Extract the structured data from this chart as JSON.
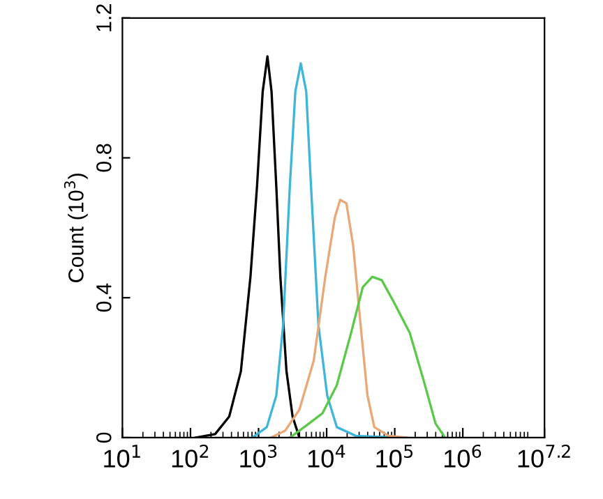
{
  "chart_data": {
    "type": "line",
    "ylabel": "Count (10$^{3}$)",
    "log": "x",
    "grid": false,
    "legend": false,
    "marker": "none",
    "line_style": "solid",
    "xlim": [
      10,
      15848932
    ],
    "ylim": [
      0,
      1.2
    ],
    "xticks": [
      {
        "value": 10,
        "label": "10$^{1}$"
      },
      {
        "value": 100,
        "label": "10$^{2}$"
      },
      {
        "value": 1000,
        "label": "10$^{3}$"
      },
      {
        "value": 10000,
        "label": "10$^{4}$"
      },
      {
        "value": 100000,
        "label": "10$^{5}$"
      },
      {
        "value": 1000000,
        "label": "10$^{6}$"
      },
      {
        "value": 15848932,
        "label": "10$^{7.2}$"
      }
    ],
    "yticks": [
      0,
      0.4,
      0.8,
      1.2
    ],
    "series": [
      {
        "color": "#000000",
        "x": [
          120,
          230,
          370,
          550,
          760,
          950,
          1150,
          1350,
          1550,
          1820,
          2090,
          2570,
          3160,
          3980
        ],
        "values": [
          0,
          0.01,
          0.06,
          0.19,
          0.46,
          0.72,
          0.99,
          1.09,
          0.99,
          0.72,
          0.46,
          0.19,
          0.06,
          0
        ]
      },
      {
        "color": "#3fb6d8",
        "x": [
          810,
          1320,
          1820,
          2290,
          2880,
          3470,
          4170,
          5010,
          5890,
          7590,
          10200,
          14100,
          26900,
          112000
        ],
        "values": [
          0,
          0.03,
          0.12,
          0.32,
          0.72,
          0.99,
          1.07,
          0.99,
          0.72,
          0.32,
          0.12,
          0.03,
          0.005,
          0
        ]
      },
      {
        "color": "#e8a878",
        "x": [
          1510,
          2460,
          3980,
          6460,
          9550,
          13200,
          15800,
          19500,
          24500,
          31600,
          39800,
          50100,
          81300,
          155000
        ],
        "values": [
          0,
          0.02,
          0.08,
          0.22,
          0.46,
          0.63,
          0.68,
          0.67,
          0.55,
          0.32,
          0.12,
          0.03,
          0.005,
          0
        ]
      },
      {
        "color": "#5cc84a",
        "x": [
          2880,
          4680,
          8710,
          14100,
          22900,
          33900,
          46800,
          64600,
          95500,
          166000,
          269000,
          398000,
          550000
        ],
        "values": [
          0,
          0.03,
          0.07,
          0.15,
          0.3,
          0.43,
          0.46,
          0.45,
          0.39,
          0.3,
          0.16,
          0.04,
          0
        ]
      }
    ]
  }
}
